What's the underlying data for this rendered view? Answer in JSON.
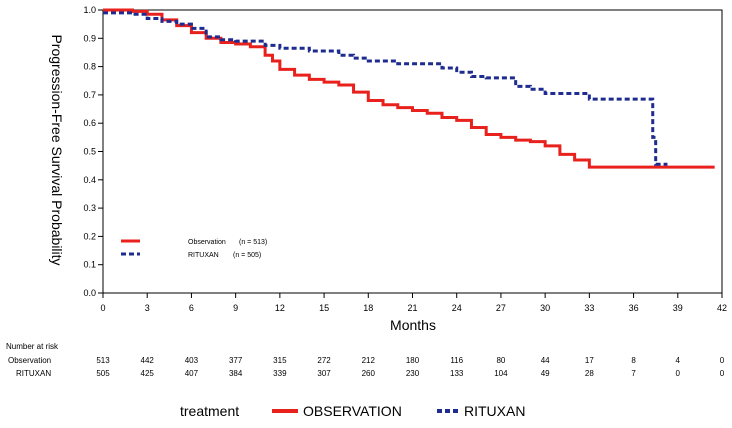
{
  "chart_data": {
    "type": "line",
    "xlabel": "Months",
    "ylabel": "Progression-Free Survival Probability",
    "xlim": [
      0,
      42
    ],
    "ylim": [
      0,
      1.0
    ],
    "x_ticks": [
      0,
      3,
      6,
      9,
      12,
      15,
      18,
      21,
      24,
      27,
      30,
      33,
      36,
      39,
      42
    ],
    "y_ticks": [
      0.0,
      0.1,
      0.2,
      0.3,
      0.4,
      0.5,
      0.6,
      0.7,
      0.8,
      0.9,
      1.0
    ],
    "y_tick_labels": [
      "0.0",
      "0.1",
      "0.2",
      "0.3",
      "0.4",
      "0.5",
      "0.6",
      "0.7",
      "0.8",
      "0.9",
      "1.0"
    ],
    "grid": false,
    "series": [
      {
        "name": "Observation",
        "legend_n": "(n = 513)",
        "color": "#e8211d",
        "style": "solid",
        "x": [
          0,
          2,
          3,
          4,
          5,
          6,
          7,
          8,
          9,
          10,
          11,
          11.5,
          12,
          13,
          14,
          15,
          16,
          17,
          18,
          19,
          20,
          21,
          22,
          23,
          24,
          25,
          26,
          27,
          28,
          29,
          30,
          31,
          32,
          33,
          41.5
        ],
        "y": [
          1.0,
          0.995,
          0.985,
          0.965,
          0.945,
          0.92,
          0.9,
          0.885,
          0.88,
          0.87,
          0.84,
          0.82,
          0.79,
          0.77,
          0.755,
          0.745,
          0.735,
          0.71,
          0.68,
          0.665,
          0.655,
          0.645,
          0.635,
          0.62,
          0.61,
          0.585,
          0.56,
          0.55,
          0.54,
          0.535,
          0.52,
          0.49,
          0.47,
          0.445,
          0.445
        ]
      },
      {
        "name": "RITUXAN",
        "legend_n": "(n = 505)",
        "color": "#1f2c8f",
        "style": "dashed",
        "x": [
          0,
          2,
          3,
          4,
          5,
          6,
          7,
          8,
          9,
          10,
          11,
          12,
          14,
          16,
          17,
          18,
          20,
          22,
          23,
          24,
          25,
          26,
          28,
          29,
          30,
          32,
          33,
          35,
          37.3,
          37.3,
          37.5,
          38.3
        ],
        "y": [
          0.99,
          0.985,
          0.97,
          0.96,
          0.95,
          0.935,
          0.905,
          0.895,
          0.89,
          0.89,
          0.875,
          0.865,
          0.855,
          0.84,
          0.83,
          0.82,
          0.81,
          0.81,
          0.795,
          0.78,
          0.765,
          0.76,
          0.73,
          0.72,
          0.705,
          0.705,
          0.685,
          0.685,
          0.685,
          0.55,
          0.455,
          0.455
        ]
      }
    ],
    "legend_placement": "lower-left",
    "risk_table": {
      "title": "Number at risk",
      "times": [
        0,
        3,
        6,
        9,
        12,
        15,
        18,
        21,
        24,
        27,
        30,
        33,
        36,
        39,
        42
      ],
      "rows": [
        {
          "label": "Observation",
          "values": [
            513,
            442,
            403,
            377,
            315,
            272,
            212,
            180,
            116,
            80,
            44,
            17,
            8,
            4,
            0
          ]
        },
        {
          "label": "RITUXAN",
          "values": [
            505,
            425,
            407,
            384,
            339,
            307,
            260,
            230,
            133,
            104,
            49,
            28,
            7,
            0,
            0
          ]
        }
      ]
    },
    "bottom_legend": {
      "title": "treatment",
      "entries": [
        {
          "label": "OBSERVATION",
          "color": "#e8211d",
          "style": "solid"
        },
        {
          "label": "RITUXAN",
          "color": "#1f2c8f",
          "style": "dashed"
        }
      ]
    }
  }
}
